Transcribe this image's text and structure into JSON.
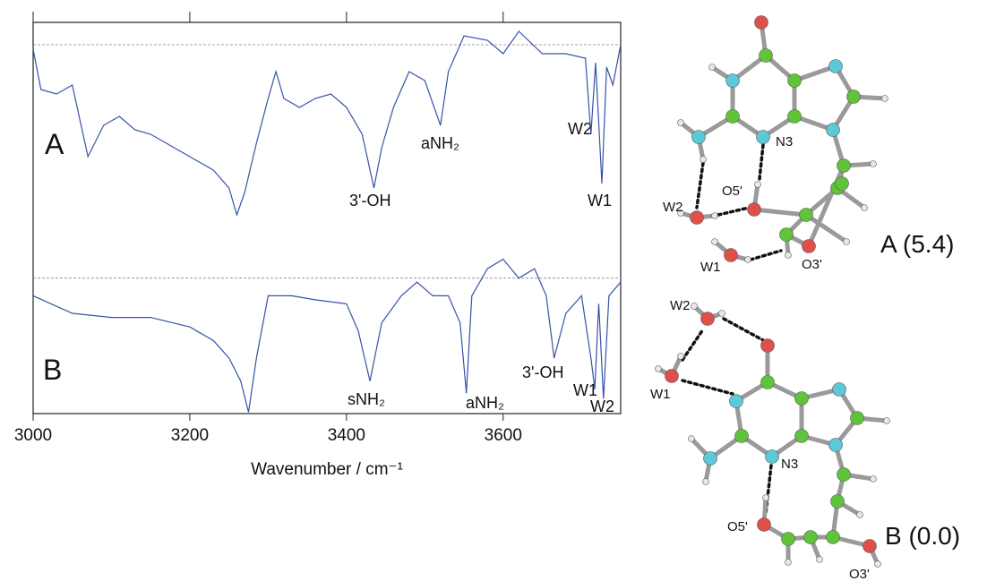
{
  "chart_data": {
    "type": "line",
    "x_label": "Wavenumber / cm⁻¹",
    "xlim": [
      3000,
      3750
    ],
    "xticks": [
      3000,
      3200,
      3400,
      3600
    ],
    "color": "#3652a8",
    "panels": [
      {
        "label": "A",
        "ylim": [
          -1.2,
          0.15
        ],
        "reference_line": 0,
        "x": [
          3000,
          3010,
          3030,
          3050,
          3070,
          3090,
          3110,
          3130,
          3150,
          3170,
          3190,
          3210,
          3230,
          3250,
          3260,
          3270,
          3285,
          3300,
          3310,
          3320,
          3340,
          3360,
          3380,
          3400,
          3420,
          3435,
          3445,
          3460,
          3480,
          3500,
          3520,
          3530,
          3550,
          3580,
          3600,
          3620,
          3650,
          3680,
          3705,
          3712,
          3718,
          3726,
          3732,
          3740,
          3750
        ],
        "values": [
          -0.03,
          -0.3,
          -0.33,
          -0.27,
          -0.75,
          -0.54,
          -0.48,
          -0.57,
          -0.6,
          -0.66,
          -0.72,
          -0.78,
          -0.84,
          -0.96,
          -1.14,
          -0.99,
          -0.66,
          -0.36,
          -0.18,
          -0.36,
          -0.42,
          -0.36,
          -0.33,
          -0.42,
          -0.6,
          -0.96,
          -0.69,
          -0.42,
          -0.18,
          -0.24,
          -0.54,
          -0.18,
          0.06,
          0.03,
          -0.06,
          0.09,
          -0.06,
          -0.06,
          -0.09,
          -0.6,
          -0.12,
          -0.93,
          -0.15,
          -0.27,
          0.0
        ],
        "annotations": [
          "3'-OH",
          "aNH₂",
          "W2",
          "W1"
        ]
      },
      {
        "label": "B",
        "ylim": [
          -1.0,
          0.15
        ],
        "reference_line": 0,
        "x": [
          3000,
          3050,
          3100,
          3150,
          3200,
          3230,
          3250,
          3265,
          3275,
          3285,
          3300,
          3330,
          3360,
          3400,
          3415,
          3430,
          3445,
          3470,
          3490,
          3510,
          3530,
          3545,
          3553,
          3560,
          3580,
          3600,
          3620,
          3640,
          3655,
          3665,
          3680,
          3700,
          3712,
          3717,
          3722,
          3728,
          3735,
          3750
        ],
        "values": [
          -0.13,
          -0.26,
          -0.29,
          -0.29,
          -0.36,
          -0.46,
          -0.59,
          -0.76,
          -0.99,
          -0.59,
          -0.13,
          -0.13,
          -0.16,
          -0.19,
          -0.39,
          -0.76,
          -0.33,
          -0.13,
          -0.03,
          -0.13,
          -0.13,
          -0.33,
          -0.85,
          -0.13,
          0.07,
          0.14,
          0.0,
          0.07,
          -0.13,
          -0.59,
          -0.26,
          -0.13,
          -0.59,
          -0.82,
          -0.19,
          -0.89,
          -0.13,
          -0.03
        ],
        "annotations": [
          "sNH₂",
          "aNH₂",
          "3'-OH",
          "W1",
          "W2"
        ]
      }
    ]
  },
  "structures": [
    {
      "label": "A (5.4)",
      "atom_labels": [
        "N3",
        "O5'",
        "W2",
        "W1",
        "O3'"
      ]
    },
    {
      "label": "B (0.0)",
      "atom_labels": [
        "W2",
        "W1",
        "N3",
        "O5'",
        "O3'"
      ]
    }
  ]
}
